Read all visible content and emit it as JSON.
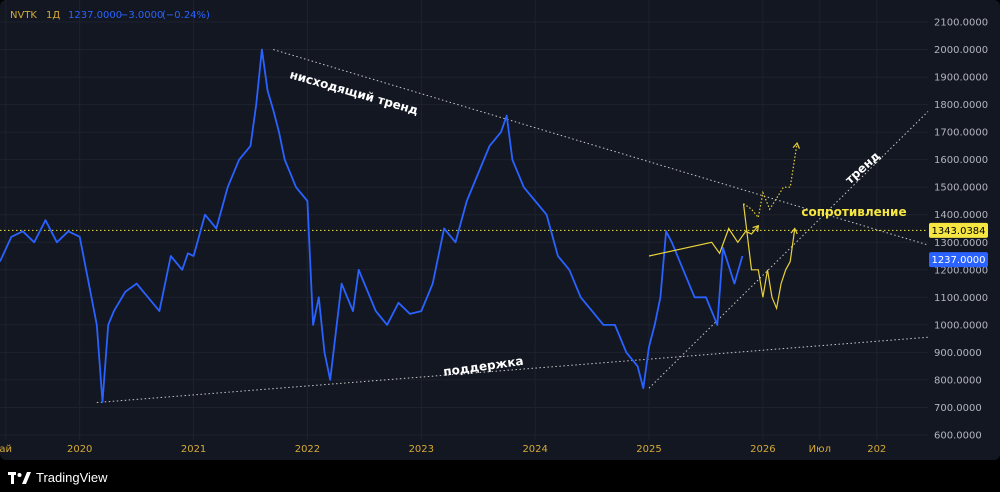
{
  "header": {
    "ticker": "NVTK",
    "interval": "1Д",
    "price": "1237.0000",
    "change": "−3.0000",
    "change_pct": "(−0.24%)"
  },
  "brand": {
    "name": "TradingView"
  },
  "colors": {
    "background": "#131722",
    "price_line": "#2962ff",
    "forecast": "#e8d23a",
    "grid": "#1e222d",
    "axis_text": "#b2b5be",
    "time_text": "#d4a935",
    "trend_line": "#c8c8c8",
    "badge_yellow": "#f5e642",
    "badge_blue": "#2962ff"
  },
  "chart_data": {
    "type": "line",
    "title": "",
    "xlabel": "",
    "ylabel": "",
    "ylim": [
      600,
      2100
    ],
    "y_ticks": [
      "2100.0000",
      "2000.0000",
      "1900.0000",
      "1800.0000",
      "1700.0000",
      "1600.0000",
      "1500.0000",
      "1400.0000",
      "1300.0000",
      "1200.0000",
      "1100.0000",
      "1000.0000",
      "900.0000",
      "800.0000",
      "700.0000",
      "600.0000"
    ],
    "x_ticks": [
      {
        "label": "ай",
        "t": 2019.35
      },
      {
        "label": "2020",
        "t": 2020.0
      },
      {
        "label": "2021",
        "t": 2021.0
      },
      {
        "label": "2022",
        "t": 2022.0
      },
      {
        "label": "2023",
        "t": 2023.0
      },
      {
        "label": "2024",
        "t": 2024.0
      },
      {
        "label": "2025",
        "t": 2025.0
      },
      {
        "label": "2026",
        "t": 2026.0
      },
      {
        "label": "Июл",
        "t": 2026.5
      },
      {
        "label": "202",
        "t": 2027.0
      }
    ],
    "xlim": [
      2019.3,
      2027.45
    ],
    "series": [
      {
        "name": "",
        "x": [
          2019.3,
          2019.4,
          2019.5,
          2019.6,
          2019.7,
          2019.8,
          2019.9,
          2020.0,
          2020.08,
          2020.15,
          2020.2,
          2020.25,
          2020.3,
          2020.4,
          2020.5,
          2020.6,
          2020.7,
          2020.8,
          2020.9,
          2020.95,
          2021.0,
          2021.1,
          2021.2,
          2021.3,
          2021.4,
          2021.5,
          2021.55,
          2021.6,
          2021.65,
          2021.7,
          2021.75,
          2021.8,
          2021.85,
          2021.9,
          2022.0,
          2022.05,
          2022.1,
          2022.15,
          2022.2,
          2022.3,
          2022.4,
          2022.45,
          2022.5,
          2022.6,
          2022.7,
          2022.8,
          2022.9,
          2023.0,
          2023.1,
          2023.2,
          2023.3,
          2023.4,
          2023.5,
          2023.6,
          2023.7,
          2023.75,
          2023.8,
          2023.9,
          2024.0,
          2024.1,
          2024.2,
          2024.3,
          2024.4,
          2024.5,
          2024.6,
          2024.7,
          2024.8,
          2024.9,
          2024.95,
          2025.0,
          2025.05,
          2025.1,
          2025.15,
          2025.2,
          2025.3,
          2025.4,
          2025.5,
          2025.6,
          2025.65,
          2025.75,
          2025.82
        ],
        "y": [
          1230,
          1320,
          1340,
          1300,
          1380,
          1300,
          1340,
          1320,
          1150,
          1000,
          720,
          1000,
          1050,
          1120,
          1150,
          1100,
          1050,
          1250,
          1200,
          1260,
          1250,
          1400,
          1350,
          1500,
          1600,
          1650,
          1800,
          2000,
          1850,
          1780,
          1700,
          1600,
          1550,
          1500,
          1450,
          1000,
          1100,
          900,
          800,
          1150,
          1050,
          1200,
          1150,
          1050,
          1000,
          1080,
          1040,
          1050,
          1150,
          1350,
          1300,
          1450,
          1550,
          1650,
          1700,
          1760,
          1600,
          1500,
          1450,
          1400,
          1250,
          1200,
          1100,
          1050,
          1000,
          1000,
          900,
          850,
          770,
          920,
          1000,
          1100,
          1340,
          1300,
          1200,
          1100,
          1100,
          1000,
          1280,
          1150,
          1250
        ]
      },
      {
        "name": "",
        "x": [
          2025.83,
          2025.9,
          2025.96,
          2026.0,
          2026.04,
          2026.08,
          2026.12,
          2026.16,
          2026.2,
          2026.24,
          2026.28
        ],
        "y": [
          1440,
          1200,
          1200,
          1100,
          1200,
          1100,
          1060,
          1150,
          1200,
          1230,
          1350
        ],
        "style": "forecast-solid"
      },
      {
        "name": "",
        "x": [
          2025.83,
          2025.9,
          2025.96,
          2026.0,
          2026.06,
          2026.12,
          2026.18,
          2026.24,
          2026.3
        ],
        "y": [
          1440,
          1420,
          1390,
          1480,
          1420,
          1460,
          1500,
          1500,
          1660
        ],
        "style": "forecast-dotted"
      },
      {
        "name": "",
        "x": [
          2025.0,
          2025.55,
          2025.62,
          2025.7,
          2025.78,
          2025.85,
          2025.9,
          2025.96
        ],
        "y": [
          1250,
          1300,
          1260,
          1350,
          1300,
          1340,
          1330,
          1360
        ],
        "style": "forecast-solid"
      }
    ],
    "lines": [
      {
        "name": "descending-trend",
        "from": [
          2021.7,
          2000
        ],
        "to": [
          2027.45,
          1290
        ]
      },
      {
        "name": "ascending-trend",
        "from": [
          2025.0,
          770
        ],
        "to": [
          2027.45,
          1775
        ]
      },
      {
        "name": "support",
        "from": [
          2020.15,
          718
        ],
        "to": [
          2027.45,
          955
        ]
      },
      {
        "name": "resistance",
        "value": 1343.0384
      }
    ],
    "annotations": [
      {
        "text": "нисходящий тренд",
        "x": 2022.4,
        "y": 1830,
        "rotate": 16,
        "color": "#ffffff"
      },
      {
        "text": "поддержка",
        "x": 2023.55,
        "y": 835,
        "rotate": -8,
        "color": "#ffffff"
      },
      {
        "text": "тренд",
        "x": 2026.9,
        "y": 1560,
        "rotate": -42,
        "color": "#ffffff"
      },
      {
        "text": "сопротивление",
        "x": 2026.8,
        "y": 1395,
        "rotate": 0,
        "color": "#f5e642"
      }
    ],
    "badges": [
      {
        "text": "1343.0384",
        "value": 1343.0384,
        "color": "#f5e642",
        "text_color": "#000000"
      },
      {
        "text": "1237.0000",
        "value": 1237,
        "color": "#2962ff",
        "text_color": "#ffffff"
      }
    ]
  }
}
